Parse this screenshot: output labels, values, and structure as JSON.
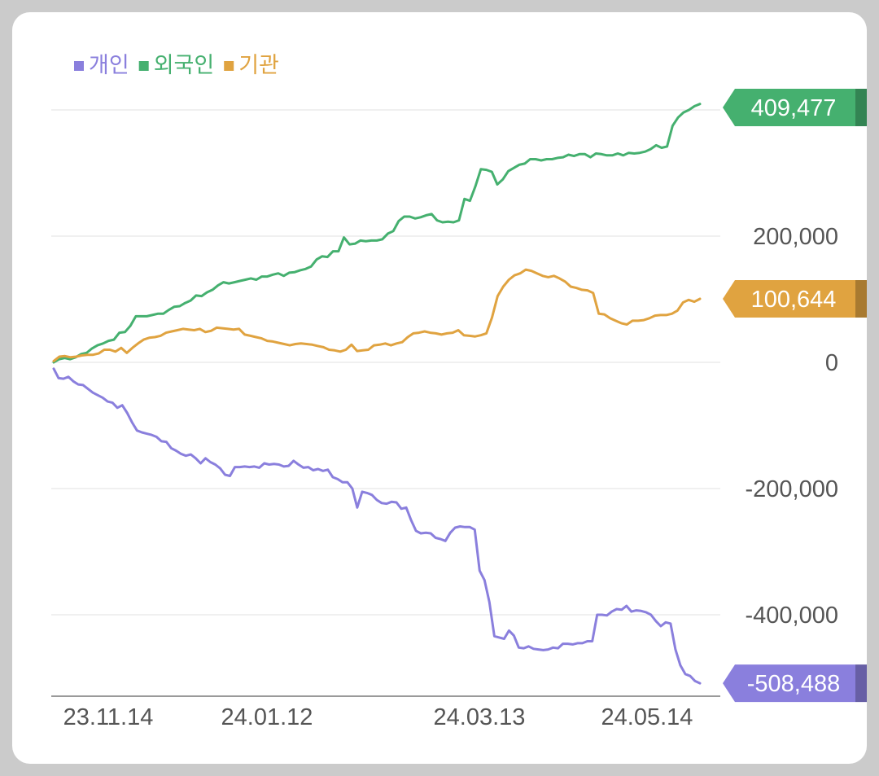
{
  "chart_data": {
    "type": "line",
    "x_tick_labels": [
      "23.11.14",
      "24.01.12",
      "24.03.13",
      "24.05.14"
    ],
    "y_ticks": [
      {
        "value": 200000,
        "label": "200,000"
      },
      {
        "value": 0,
        "label": "0"
      },
      {
        "value": -200000,
        "label": "-200,000"
      },
      {
        "value": -400000,
        "label": "-400,000"
      }
    ],
    "grid_values": [
      400000,
      200000,
      0,
      -200000,
      -400000
    ],
    "ylim": [
      -530000,
      420000
    ],
    "grid": true,
    "legend_position": "top-left",
    "series": [
      {
        "name": "개인",
        "color": "#8a7fdd",
        "end_label": "-508,488",
        "values": [
          -10000,
          -25000,
          -26000,
          -23000,
          -30000,
          -35000,
          -36000,
          -42000,
          -48000,
          -52000,
          -56000,
          -62000,
          -64000,
          -72000,
          -68000,
          -80000,
          -95000,
          -108000,
          -111000,
          -113000,
          -115000,
          -118000,
          -125000,
          -126000,
          -136000,
          -140000,
          -145000,
          -148000,
          -146000,
          -152000,
          -160000,
          -152000,
          -158000,
          -162000,
          -168000,
          -178000,
          -180000,
          -166000,
          -166000,
          -165000,
          -166000,
          -165000,
          -167000,
          -160000,
          -162000,
          -161000,
          -162000,
          -165000,
          -164000,
          -156000,
          -162000,
          -167000,
          -166000,
          -171000,
          -169000,
          -172000,
          -170000,
          -182000,
          -185000,
          -190000,
          -190000,
          -200000,
          -230000,
          -205000,
          -207000,
          -210000,
          -218000,
          -223000,
          -224000,
          -221000,
          -222000,
          -232000,
          -230000,
          -250000,
          -267000,
          -271000,
          -270000,
          -271000,
          -278000,
          -280000,
          -283000,
          -270000,
          -262000,
          -260000,
          -261000,
          -261000,
          -265000,
          -330000,
          -345000,
          -380000,
          -434000,
          -436000,
          -438000,
          -425000,
          -433000,
          -452000,
          -453000,
          -450000,
          -454000,
          -455000,
          -456000,
          -455000,
          -452000,
          -453000,
          -446000,
          -446000,
          -447000,
          -445000,
          -445000,
          -442000,
          -442000,
          -400000,
          -400000,
          -401000,
          -395000,
          -391000,
          -392000,
          -386000,
          -395000,
          -393000,
          -394000,
          -396000,
          -400000,
          -410000,
          -418000,
          -412000,
          -414000,
          -455000,
          -480000,
          -494000,
          -497000,
          -505000,
          -508488
        ]
      },
      {
        "name": "외국인",
        "color": "#45b06f",
        "end_label": "409,477",
        "values": [
          0,
          5000,
          7000,
          5000,
          8000,
          13000,
          15000,
          22000,
          27000,
          30000,
          34000,
          36000,
          47000,
          48000,
          58000,
          73000,
          73000,
          73000,
          75000,
          77000,
          77000,
          83000,
          88000,
          89000,
          94000,
          98000,
          106000,
          105000,
          111000,
          115000,
          122000,
          127000,
          125000,
          127000,
          129000,
          131000,
          133000,
          131000,
          136000,
          136000,
          139000,
          141000,
          137000,
          142000,
          143000,
          146000,
          148000,
          152000,
          163000,
          168000,
          167000,
          176000,
          176000,
          198000,
          187000,
          188000,
          193000,
          192000,
          193000,
          193000,
          195000,
          204000,
          208000,
          224000,
          231000,
          231000,
          228000,
          230000,
          233000,
          235000,
          225000,
          222000,
          223000,
          222000,
          225000,
          259000,
          256000,
          279000,
          306000,
          305000,
          302000,
          282000,
          290000,
          303000,
          308000,
          313000,
          315000,
          322000,
          322000,
          320000,
          322000,
          322000,
          324000,
          325000,
          329000,
          327000,
          330000,
          330000,
          325000,
          331000,
          330000,
          328000,
          328000,
          331000,
          328000,
          332000,
          331000,
          332000,
          334000,
          338000,
          344000,
          340000,
          342000,
          375000,
          388000,
          396000,
          400000,
          406000,
          409477
        ]
      },
      {
        "name": "기관",
        "color": "#e0a340",
        "end_label": "100,644",
        "values": [
          2000,
          9000,
          10000,
          8000,
          9000,
          11000,
          12000,
          12000,
          14000,
          20000,
          20000,
          17000,
          23000,
          15000,
          23000,
          30000,
          36000,
          39000,
          40000,
          42000,
          47000,
          49000,
          51000,
          53000,
          52000,
          51000,
          53000,
          48000,
          50000,
          55000,
          54000,
          53000,
          52000,
          53000,
          44000,
          42000,
          40000,
          38000,
          34000,
          33000,
          31000,
          29000,
          27000,
          29000,
          30000,
          29000,
          28000,
          26000,
          24000,
          20000,
          19000,
          17000,
          20000,
          28000,
          18000,
          19000,
          20000,
          27000,
          28000,
          30000,
          27000,
          30000,
          32000,
          40000,
          46000,
          47000,
          49000,
          47000,
          46000,
          44000,
          46000,
          47000,
          51000,
          43000,
          42000,
          41000,
          43000,
          46000,
          71000,
          105000,
          120000,
          131000,
          138000,
          141000,
          147000,
          145000,
          141000,
          137000,
          135000,
          137000,
          133000,
          128000,
          120000,
          118000,
          115000,
          114000,
          110000,
          77000,
          76000,
          70000,
          66000,
          62000,
          60000,
          66000,
          66000,
          67000,
          70000,
          74000,
          75000,
          75000,
          77000,
          82000,
          95000,
          99000,
          96000,
          100644
        ]
      }
    ]
  }
}
